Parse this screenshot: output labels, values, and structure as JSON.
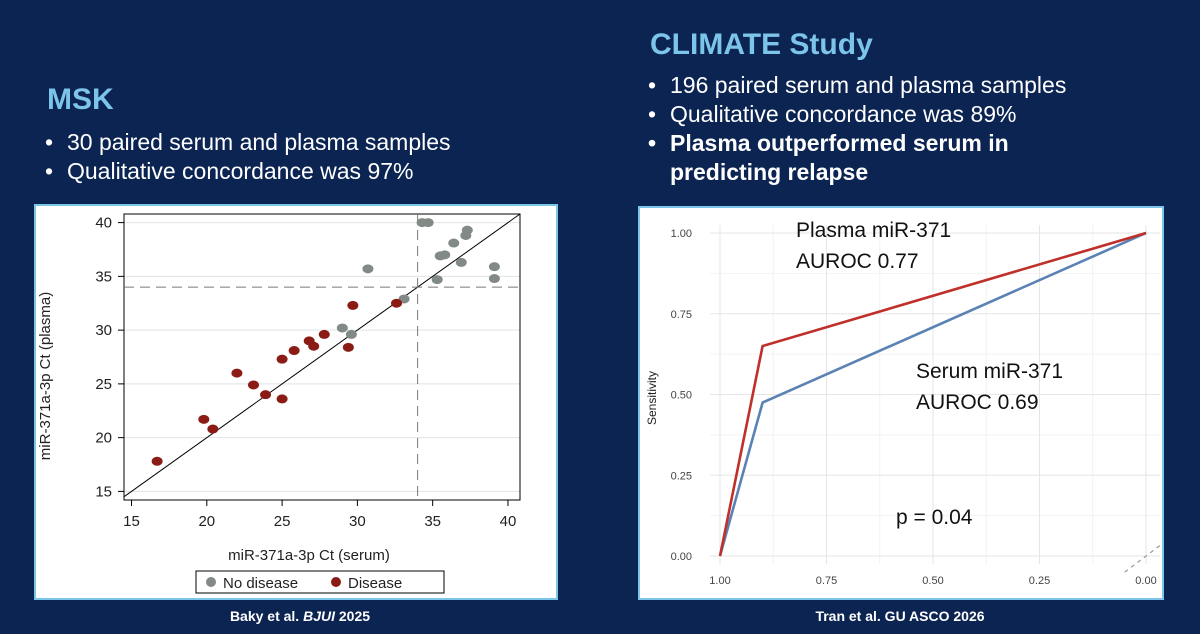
{
  "left": {
    "heading": "MSK",
    "bullets": [
      "30 paired serum and plasma samples",
      "Qualitative concordance was 97%"
    ],
    "citation_prefix": "Baky et al. ",
    "citation_journal": "BJUI",
    "citation_suffix": " 2025"
  },
  "right": {
    "heading": "CLIMATE Study",
    "bullets": [
      "196 paired serum and plasma samples",
      "Qualitative concordance was 89%"
    ],
    "bold_bullet_line1": "Plasma outperformed serum in",
    "bold_bullet_line2": "predicting relapse",
    "citation": "Tran et al. GU ASCO 2026"
  },
  "chart_data": [
    {
      "type": "scatter",
      "xlabel": "miR-371a-3p Ct (serum)",
      "ylabel": "miR-371a-3p Ct (plasma)",
      "xlim": [
        14.5,
        40.8
      ],
      "ylim": [
        14.2,
        40.8
      ],
      "xticks": [
        "15",
        "20",
        "25",
        "30",
        "35",
        "40"
      ],
      "yticks": [
        "15",
        "20",
        "25",
        "30",
        "35",
        "40"
      ],
      "threshold_x": 34,
      "threshold_y": 34,
      "legend": [
        "No disease",
        "Disease"
      ],
      "colors": {
        "no_disease": "#828a86",
        "disease": "#8a1c15"
      },
      "series": [
        {
          "name": "No disease",
          "points": [
            [
              30.7,
              35.7
            ],
            [
              33.1,
              32.9
            ],
            [
              34.3,
              40.0
            ],
            [
              34.7,
              40.0
            ],
            [
              35.3,
              34.7
            ],
            [
              35.5,
              36.9
            ],
            [
              35.8,
              37.0
            ],
            [
              36.4,
              38.1
            ],
            [
              36.9,
              36.3
            ],
            [
              37.2,
              38.8
            ],
            [
              37.3,
              39.3
            ],
            [
              39.1,
              35.9
            ],
            [
              39.1,
              34.8
            ],
            [
              29.0,
              30.2
            ],
            [
              29.6,
              29.6
            ]
          ]
        },
        {
          "name": "Disease",
          "points": [
            [
              16.7,
              17.8
            ],
            [
              19.8,
              21.7
            ],
            [
              20.4,
              20.8
            ],
            [
              22.0,
              26.0
            ],
            [
              23.1,
              24.9
            ],
            [
              23.9,
              24.0
            ],
            [
              25.0,
              27.3
            ],
            [
              25.0,
              23.6
            ],
            [
              25.8,
              28.1
            ],
            [
              26.8,
              29.0
            ],
            [
              27.1,
              28.5
            ],
            [
              27.8,
              29.6
            ],
            [
              29.4,
              28.4
            ],
            [
              29.7,
              32.3
            ],
            [
              32.6,
              32.5
            ]
          ]
        }
      ]
    },
    {
      "type": "line",
      "ylabel": "Sensitivity",
      "xlim": [
        1.0,
        0.0
      ],
      "ylim": [
        0.0,
        1.0
      ],
      "xticks": [
        "1.00",
        "0.75",
        "0.50",
        "0.25",
        "0.00"
      ],
      "yticks": [
        "0.00",
        "0.25",
        "0.50",
        "0.75",
        "1.00"
      ],
      "annotations": {
        "plasma_line1": "Plasma miR-371",
        "plasma_line2": "AUROC 0.77",
        "serum_line1": "Serum miR-371",
        "serum_line2": "AUROC 0.69",
        "pvalue": "p = 0.04"
      },
      "series": [
        {
          "color": "#c0302a",
          "points": [
            [
              1.0,
              0.0
            ],
            [
              0.9,
              0.65
            ],
            [
              0.0,
              1.0
            ]
          ]
        },
        {
          "color": "#5a82b4",
          "points": [
            [
              1.0,
              0.0
            ],
            [
              0.9,
              0.475
            ],
            [
              0.0,
              1.0
            ]
          ]
        }
      ]
    }
  ]
}
